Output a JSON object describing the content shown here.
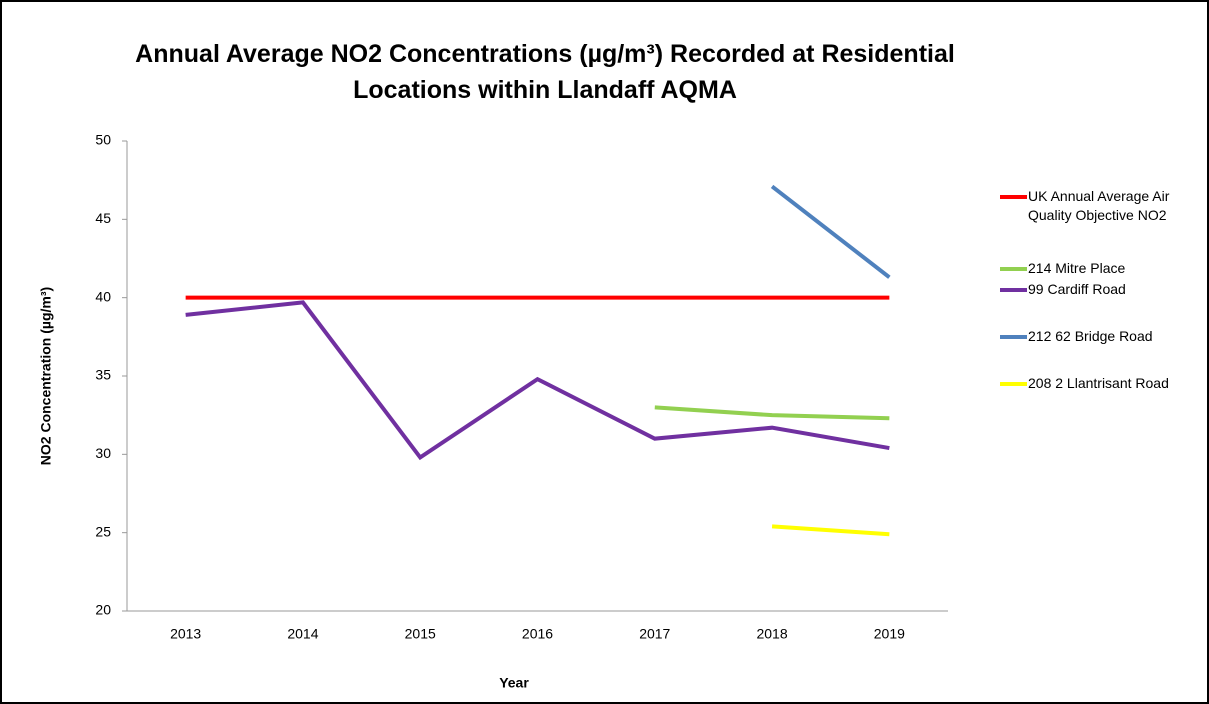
{
  "chart_data": {
    "type": "line",
    "title": "Annual Average NO2 Concentrations (µg/m³) Recorded at Residential Locations within Llandaff AQMA",
    "x_label": "Year",
    "y_label": "NO2 Concentration (µg/m³)",
    "categories": [
      "2013",
      "2014",
      "2015",
      "2016",
      "2017",
      "2018",
      "2019"
    ],
    "ylim": [
      20,
      50
    ],
    "yticks": [
      20,
      25,
      30,
      35,
      40,
      45,
      50
    ],
    "legend": "right",
    "series": [
      {
        "name": "UK Annual Average Air Quality Objective NO2",
        "color": "#ff0000",
        "values": [
          40,
          40,
          40,
          40,
          40,
          40,
          40
        ]
      },
      {
        "name": "214 Mitre Place",
        "color": "#92d050",
        "values": [
          null,
          null,
          null,
          null,
          33.0,
          32.5,
          32.3
        ]
      },
      {
        "name": "99 Cardiff Road",
        "color": "#7030a0",
        "values": [
          38.9,
          39.7,
          29.8,
          34.8,
          31.0,
          31.7,
          30.4
        ]
      },
      {
        "name": "212 62 Bridge Road",
        "color": "#4f81bd",
        "values": [
          null,
          null,
          null,
          null,
          null,
          47.1,
          41.3
        ]
      },
      {
        "name": "208 2 Llantrisant Road",
        "color": "#ffff00",
        "values": [
          null,
          null,
          null,
          null,
          null,
          25.4,
          24.9
        ]
      }
    ]
  }
}
